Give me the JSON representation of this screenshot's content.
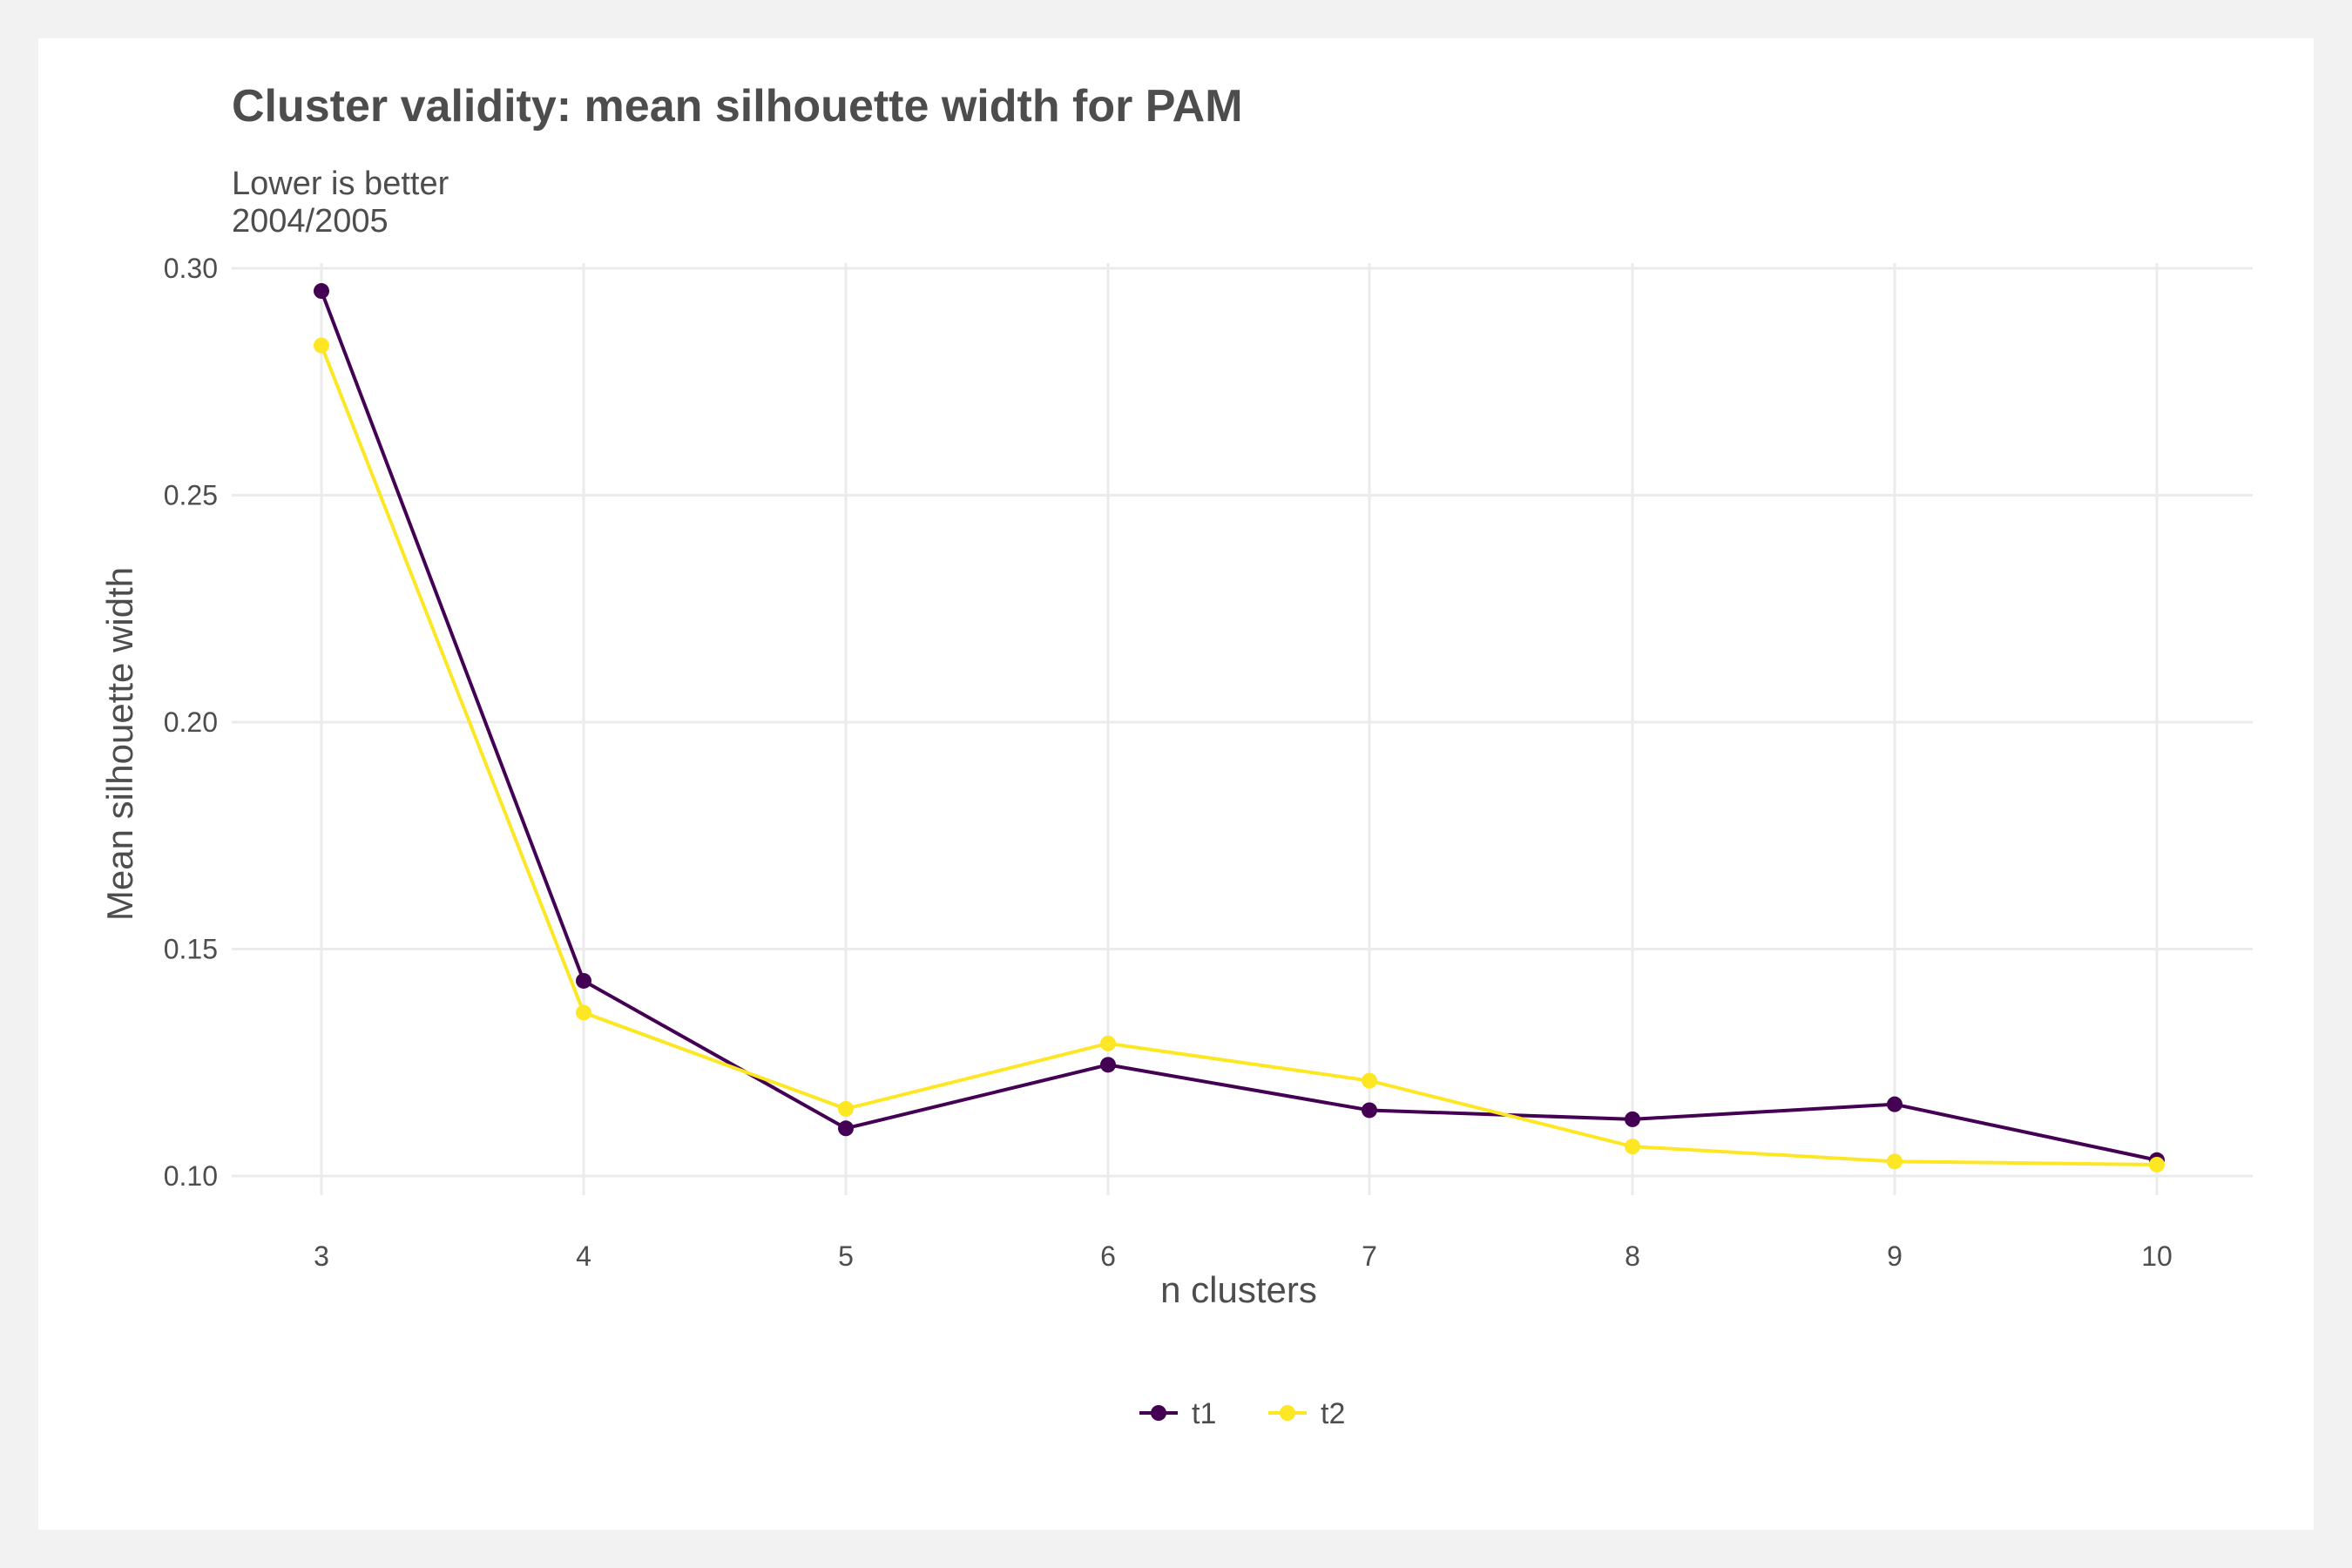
{
  "chart_data": {
    "type": "line",
    "title": "Cluster validity: mean silhouette width for PAM",
    "subtitle_lines": [
      "Lower is better",
      "2004/2005"
    ],
    "xlabel": "n clusters",
    "ylabel": "Mean silhouette width",
    "x": [
      3,
      4,
      5,
      6,
      7,
      8,
      9,
      10
    ],
    "xticks": [
      "3",
      "4",
      "5",
      "6",
      "7",
      "8",
      "9",
      "10"
    ],
    "yticks": [
      "0.10",
      "0.15",
      "0.20",
      "0.25",
      "0.30"
    ],
    "ylim": [
      0.1,
      0.3
    ],
    "grid": true,
    "legend_position": "bottom",
    "series": [
      {
        "name": "t1",
        "color": "#440154",
        "values": [
          0.295,
          0.143,
          0.1105,
          0.1245,
          0.1145,
          0.1125,
          0.1158,
          0.1035
        ]
      },
      {
        "name": "t2",
        "color": "#FDE725",
        "values": [
          0.283,
          0.136,
          0.1148,
          0.1292,
          0.121,
          0.1065,
          0.1032,
          0.1025
        ]
      }
    ]
  }
}
